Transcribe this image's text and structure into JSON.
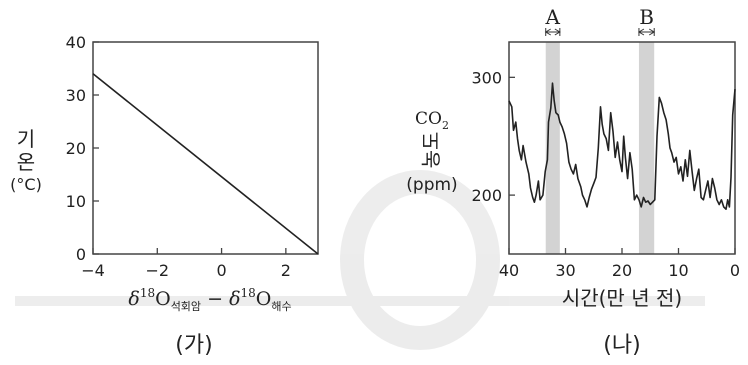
{
  "chart_data": [
    {
      "panel": "(가)",
      "type": "line",
      "xlabel": {
        "prefix": "δ",
        "sup": "18",
        "o": "O",
        "sub1": "석회암",
        "minus": " − ",
        "prefix2": "δ",
        "sup2": "18",
        "o2": "O",
        "sub2": "해수"
      },
      "ylabel": {
        "line1": "기",
        "line2": "온",
        "unit": "(°C)"
      },
      "xlim": [
        -4,
        3
      ],
      "ylim": [
        0,
        40
      ],
      "xticks": [
        -4,
        -2,
        0,
        2
      ],
      "xtick_labels": [
        "−4",
        "−2",
        "0",
        "2"
      ],
      "yticks": [
        0,
        10,
        20,
        30,
        40
      ],
      "ytick_labels": [
        "0",
        "10",
        "20",
        "30",
        "40"
      ],
      "grid": false,
      "series": [
        {
          "x": [
            -4,
            3
          ],
          "y": [
            34,
            0
          ]
        }
      ]
    },
    {
      "panel": "(나)",
      "type": "line",
      "xlabel": "시간(만 년 전)",
      "ylabel": {
        "name": "CO",
        "sub": "2",
        "line2": "농도",
        "unit": "(ppm)"
      },
      "x_reversed": true,
      "xlim": [
        40,
        0
      ],
      "ylim": [
        150,
        330
      ],
      "xticks": [
        40,
        30,
        20,
        10,
        0
      ],
      "xtick_labels": [
        "40",
        "30",
        "20",
        "10",
        "0"
      ],
      "yticks": [
        200,
        300
      ],
      "ytick_labels": [
        "200",
        "300"
      ],
      "grid": false,
      "shaded_bands": [
        {
          "label": "A",
          "from": 33.5,
          "to": 31
        },
        {
          "label": "B",
          "from": 17,
          "to": 14.3
        }
      ],
      "series": [
        {
          "x": [
            40,
            39.5,
            39.2,
            38.8,
            38.5,
            38.2,
            37.8,
            37.5,
            37.0,
            36.5,
            36.2,
            35.8,
            35.5,
            35.2,
            34.8,
            34.5,
            34.0,
            33.6,
            33.2,
            33.0,
            32.6,
            32.3,
            32.0,
            31.7,
            31.3,
            31.0,
            30.6,
            30.2,
            29.8,
            29.4,
            29.0,
            28.6,
            28.2,
            27.8,
            27.3,
            27.0,
            26.6,
            26.2,
            25.8,
            25.4,
            25.0,
            24.6,
            24.2,
            23.8,
            23.5,
            23.2,
            22.8,
            22.4,
            22.0,
            21.6,
            21.2,
            20.8,
            20.4,
            20.0,
            19.7,
            19.4,
            19.0,
            18.6,
            18.2,
            17.8,
            17.4,
            17.0,
            16.6,
            16.2,
            15.8,
            15.4,
            15.0,
            14.6,
            14.2,
            13.8,
            13.4,
            13.0,
            12.6,
            12.2,
            11.8,
            11.5,
            11.2,
            10.8,
            10.4,
            10.0,
            9.6,
            9.2,
            8.8,
            8.4,
            8.0,
            7.6,
            7.2,
            6.8,
            6.4,
            6.0,
            5.6,
            5.2,
            4.8,
            4.4,
            4.0,
            3.6,
            3.2,
            2.8,
            2.4,
            2.0,
            1.6,
            1.3,
            1.0,
            0.7,
            0.4,
            0
          ],
          "y": [
            280,
            275,
            255,
            262,
            248,
            238,
            230,
            242,
            228,
            218,
            206,
            198,
            194,
            200,
            212,
            196,
            200,
            220,
            230,
            262,
            274,
            295,
            280,
            270,
            268,
            262,
            258,
            252,
            244,
            228,
            222,
            218,
            226,
            214,
            207,
            200,
            196,
            190,
            198,
            205,
            210,
            215,
            240,
            275,
            260,
            252,
            248,
            238,
            270,
            254,
            232,
            245,
            230,
            220,
            250,
            232,
            214,
            236,
            222,
            196,
            200,
            196,
            190,
            198,
            194,
            195,
            192,
            194,
            196,
            250,
            283,
            278,
            270,
            264,
            252,
            240,
            236,
            228,
            232,
            218,
            224,
            212,
            230,
            216,
            238,
            220,
            204,
            214,
            222,
            198,
            196,
            204,
            212,
            198,
            214,
            206,
            196,
            192,
            196,
            190,
            188,
            196,
            190,
            215,
            268,
            290
          ]
        }
      ]
    }
  ]
}
